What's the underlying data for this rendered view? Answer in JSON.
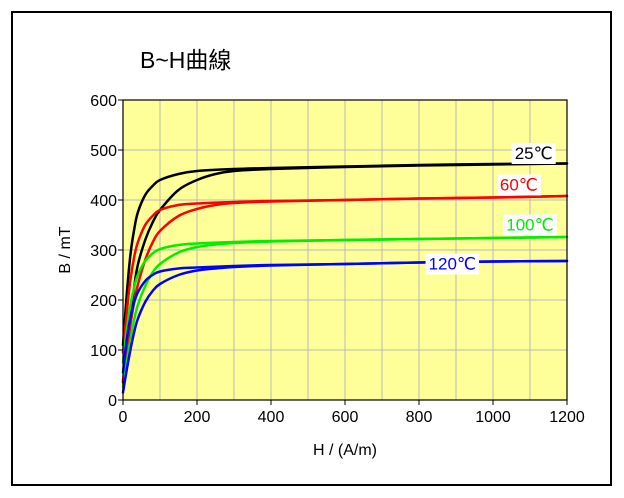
{
  "chart_data": {
    "type": "line",
    "title": "B~H曲線",
    "xlabel": "H / (A/m)",
    "ylabel": "B / mT",
    "xlim": [
      0,
      1200
    ],
    "ylim": [
      0,
      600
    ],
    "xticks": [
      0,
      200,
      400,
      600,
      800,
      1000,
      1200
    ],
    "yticks": [
      0,
      100,
      200,
      300,
      400,
      500,
      600
    ],
    "x_minor_gridlines": [
      100,
      300,
      500,
      700,
      900,
      1100
    ],
    "plot_background": "#ffff99",
    "grid": true,
    "series": [
      {
        "name": "25℃",
        "color": "#000000",
        "label_bg": "#ffffff",
        "upper": [
          [
            0,
            110
          ],
          [
            10,
            210
          ],
          [
            20,
            290
          ],
          [
            30,
            340
          ],
          [
            40,
            375
          ],
          [
            60,
            410
          ],
          [
            80,
            428
          ],
          [
            100,
            440
          ],
          [
            150,
            452
          ],
          [
            200,
            458
          ],
          [
            300,
            462
          ],
          [
            400,
            464
          ],
          [
            600,
            467
          ],
          [
            800,
            470
          ],
          [
            1000,
            472
          ],
          [
            1200,
            473
          ]
        ],
        "lower": [
          [
            0,
            35
          ],
          [
            10,
            100
          ],
          [
            20,
            170
          ],
          [
            30,
            225
          ],
          [
            40,
            270
          ],
          [
            60,
            320
          ],
          [
            80,
            355
          ],
          [
            100,
            380
          ],
          [
            150,
            420
          ],
          [
            200,
            440
          ],
          [
            250,
            452
          ],
          [
            300,
            458
          ],
          [
            400,
            462
          ],
          [
            600,
            466
          ],
          [
            800,
            469
          ],
          [
            1000,
            471
          ],
          [
            1200,
            473
          ]
        ]
      },
      {
        "name": "60℃",
        "color": "#ff0000",
        "label_bg": "#ffffff",
        "upper": [
          [
            0,
            95
          ],
          [
            10,
            175
          ],
          [
            20,
            240
          ],
          [
            30,
            285
          ],
          [
            40,
            315
          ],
          [
            60,
            350
          ],
          [
            80,
            368
          ],
          [
            100,
            380
          ],
          [
            150,
            390
          ],
          [
            200,
            393
          ],
          [
            300,
            396
          ],
          [
            400,
            398
          ],
          [
            600,
            400
          ],
          [
            800,
            403
          ],
          [
            1000,
            405
          ],
          [
            1200,
            408
          ]
        ],
        "lower": [
          [
            0,
            40
          ],
          [
            10,
            95
          ],
          [
            20,
            150
          ],
          [
            30,
            195
          ],
          [
            40,
            230
          ],
          [
            60,
            280
          ],
          [
            80,
            315
          ],
          [
            100,
            338
          ],
          [
            150,
            368
          ],
          [
            200,
            382
          ],
          [
            250,
            390
          ],
          [
            300,
            394
          ],
          [
            400,
            397
          ],
          [
            600,
            400
          ],
          [
            800,
            403
          ],
          [
            1000,
            405
          ],
          [
            1200,
            408
          ]
        ]
      },
      {
        "name": "100℃",
        "color": "#00ee00",
        "label_bg": "#ffffff",
        "upper": [
          [
            0,
            75
          ],
          [
            10,
            140
          ],
          [
            20,
            190
          ],
          [
            30,
            225
          ],
          [
            40,
            250
          ],
          [
            60,
            278
          ],
          [
            80,
            293
          ],
          [
            100,
            302
          ],
          [
            150,
            310
          ],
          [
            200,
            313
          ],
          [
            300,
            316
          ],
          [
            400,
            318
          ],
          [
            600,
            320
          ],
          [
            800,
            322
          ],
          [
            1000,
            324
          ],
          [
            1200,
            326
          ]
        ],
        "lower": [
          [
            0,
            25
          ],
          [
            10,
            75
          ],
          [
            20,
            120
          ],
          [
            30,
            160
          ],
          [
            40,
            190
          ],
          [
            60,
            228
          ],
          [
            80,
            255
          ],
          [
            100,
            272
          ],
          [
            150,
            295
          ],
          [
            200,
            306
          ],
          [
            250,
            311
          ],
          [
            300,
            314
          ],
          [
            400,
            317
          ],
          [
            600,
            320
          ],
          [
            800,
            322
          ],
          [
            1000,
            324
          ],
          [
            1200,
            326
          ]
        ]
      },
      {
        "name": "120℃",
        "color": "#0000ff",
        "label_bg": "#ffffff",
        "upper": [
          [
            0,
            55
          ],
          [
            10,
            120
          ],
          [
            20,
            165
          ],
          [
            30,
            195
          ],
          [
            40,
            215
          ],
          [
            60,
            238
          ],
          [
            80,
            250
          ],
          [
            100,
            257
          ],
          [
            150,
            263
          ],
          [
            200,
            265
          ],
          [
            300,
            268
          ],
          [
            400,
            270
          ],
          [
            600,
            272
          ],
          [
            800,
            275
          ],
          [
            1000,
            277
          ],
          [
            1200,
            278
          ]
        ],
        "lower": [
          [
            0,
            15
          ],
          [
            10,
            60
          ],
          [
            20,
            100
          ],
          [
            30,
            135
          ],
          [
            40,
            162
          ],
          [
            60,
            196
          ],
          [
            80,
            218
          ],
          [
            100,
            232
          ],
          [
            150,
            250
          ],
          [
            200,
            259
          ],
          [
            250,
            263
          ],
          [
            300,
            266
          ],
          [
            400,
            269
          ],
          [
            600,
            272
          ],
          [
            800,
            275
          ],
          [
            1000,
            277
          ],
          [
            1200,
            278
          ]
        ]
      }
    ]
  }
}
